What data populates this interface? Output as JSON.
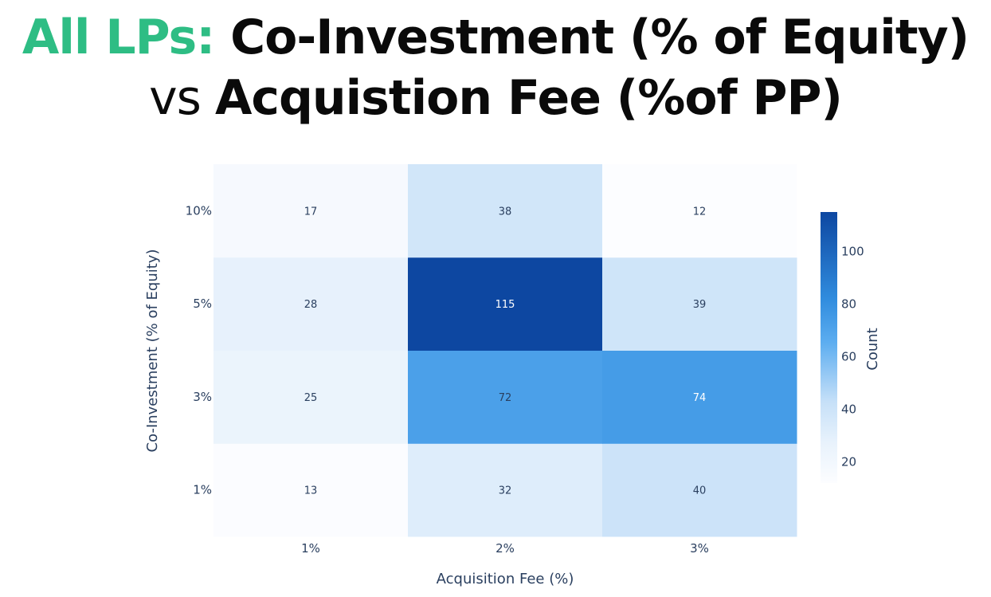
{
  "title": {
    "accent": "All LPs:",
    "line1_rest": "Co-Investment (% of Equity)",
    "vs": "vs",
    "line2_rest": "Acquistion Fee (%of PP)"
  },
  "colors": {
    "accent": "#2ebd84",
    "scale_low": "#fbfdff",
    "scale_high": "#0d47a1"
  },
  "chart_data": {
    "type": "heatmap",
    "x_categories": [
      "1%",
      "2%",
      "3%"
    ],
    "y_categories": [
      "1%",
      "3%",
      "5%",
      "10%"
    ],
    "z": [
      [
        13,
        32,
        40
      ],
      [
        25,
        72,
        74
      ],
      [
        28,
        115,
        39
      ],
      [
        17,
        38,
        12
      ]
    ],
    "xlabel": "Acquisition Fee (%)",
    "ylabel": "Co-Investment (% of Equity)",
    "colorbar": {
      "title": "Count",
      "range": [
        12,
        115
      ],
      "ticks": [
        20,
        40,
        60,
        80,
        100
      ]
    }
  }
}
